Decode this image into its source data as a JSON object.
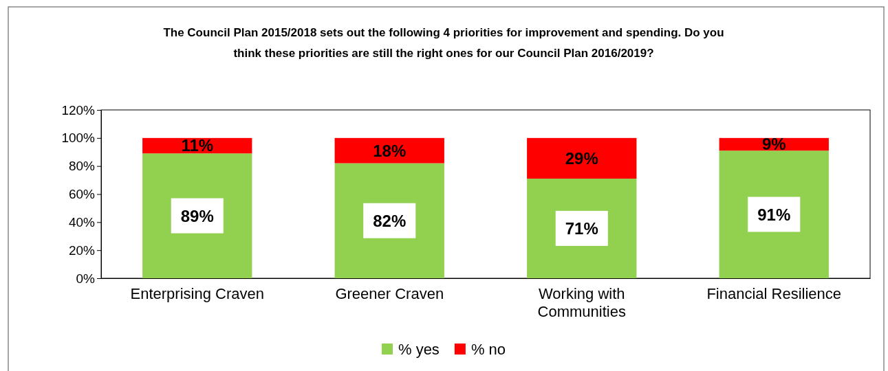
{
  "chart_data": {
    "type": "bar",
    "stacked": true,
    "title": "The Council Plan 2015/2018 sets out the following 4 priorities for improvement and spending.  Do you think these priorities are still the right ones for our Council Plan 2016/2019?",
    "categories": [
      "Enterprising Craven",
      "Greener Craven",
      "Working with Communities",
      "Financial Resilience"
    ],
    "series": [
      {
        "name": "% yes",
        "color": "#92d050",
        "values": [
          89,
          82,
          71,
          91
        ],
        "value_labels": [
          "89%",
          "82%",
          "71%",
          "91%"
        ]
      },
      {
        "name": "% no",
        "color": "#ff0000",
        "values": [
          11,
          18,
          29,
          9
        ],
        "value_labels": [
          "11%",
          "18%",
          "29%",
          "9%"
        ]
      }
    ],
    "ylim": [
      0,
      120
    ],
    "yticks": [
      {
        "value": 0,
        "label": "0%"
      },
      {
        "value": 20,
        "label": "20%"
      },
      {
        "value": 40,
        "label": "40%"
      },
      {
        "value": 60,
        "label": "60%"
      },
      {
        "value": 80,
        "label": "80%"
      },
      {
        "value": 100,
        "label": "100%"
      },
      {
        "value": 120,
        "label": "120%"
      }
    ],
    "grid": false,
    "legend": "bottom"
  }
}
